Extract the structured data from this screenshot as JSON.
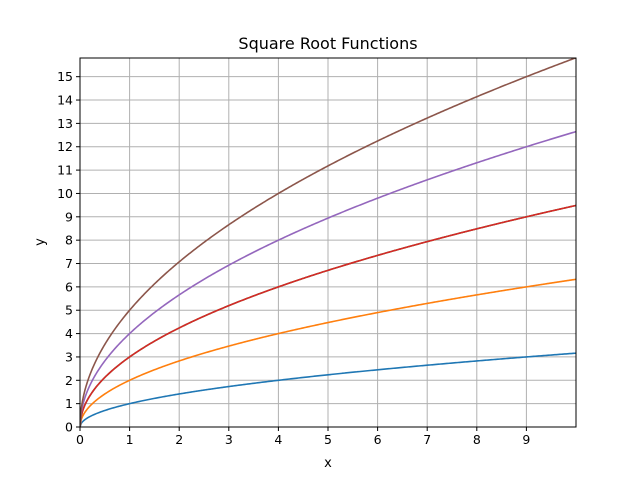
{
  "chart_data": {
    "type": "line",
    "title": "Square Root Functions",
    "xlabel": "x",
    "ylabel": "y",
    "xlim": [
      0,
      10
    ],
    "ylim": [
      0,
      15.8
    ],
    "grid": true,
    "legend": "none",
    "x_ticks": [
      "0",
      "1",
      "2",
      "3",
      "4",
      "5",
      "6",
      "7",
      "8",
      "9"
    ],
    "y_ticks": [
      "0",
      "1",
      "2",
      "3",
      "4",
      "5",
      "6",
      "7",
      "8",
      "9",
      "10",
      "11",
      "12",
      "13",
      "14",
      "15"
    ],
    "x": [
      0,
      0.25,
      0.5,
      1,
      1.5,
      2,
      2.5,
      3,
      3.5,
      4,
      4.5,
      5,
      5.5,
      6,
      6.5,
      7,
      7.5,
      8,
      8.5,
      9,
      9.5,
      10
    ],
    "series": [
      {
        "color": "#1f77b4",
        "values": [
          0,
          0.5,
          0.71,
          1,
          1.22,
          1.41,
          1.58,
          1.73,
          1.87,
          2,
          2.12,
          2.24,
          2.35,
          2.45,
          2.55,
          2.65,
          2.74,
          2.83,
          2.92,
          3,
          3.08,
          3.16
        ]
      },
      {
        "color": "#ff7f0e",
        "values": [
          0,
          1,
          1.41,
          2,
          2.45,
          2.83,
          3.16,
          3.46,
          3.74,
          4,
          4.24,
          4.47,
          4.69,
          4.9,
          5.1,
          5.29,
          5.48,
          5.66,
          5.83,
          6,
          6.16,
          6.32
        ]
      },
      {
        "color": "#2ca02c",
        "values": [
          0,
          1.5,
          2.12,
          3,
          3.67,
          4.24,
          4.74,
          5.2,
          5.61,
          6,
          6.36,
          6.71,
          7.04,
          7.35,
          7.65,
          7.94,
          8.22,
          8.49,
          8.75,
          9,
          9.25,
          9.49
        ]
      },
      {
        "color": "#d62728",
        "values": [
          0,
          1.5,
          2.12,
          3,
          3.67,
          4.24,
          4.74,
          5.2,
          5.61,
          6,
          6.36,
          6.71,
          7.04,
          7.35,
          7.65,
          7.94,
          8.22,
          8.49,
          8.75,
          9,
          9.25,
          9.49
        ]
      },
      {
        "color": "#9467bd",
        "values": [
          0,
          2,
          2.83,
          4,
          4.9,
          5.66,
          6.32,
          6.93,
          7.48,
          8,
          8.49,
          8.94,
          9.38,
          9.8,
          10.2,
          10.58,
          10.95,
          11.31,
          11.66,
          12,
          12.33,
          12.65
        ]
      },
      {
        "color": "#8c564b",
        "values": [
          0,
          2.5,
          3.54,
          5,
          6.12,
          7.07,
          7.91,
          8.66,
          9.35,
          10,
          10.61,
          11.18,
          11.73,
          12.25,
          12.75,
          13.23,
          13.69,
          14.14,
          14.58,
          15,
          15.41,
          15.81
        ]
      }
    ]
  }
}
